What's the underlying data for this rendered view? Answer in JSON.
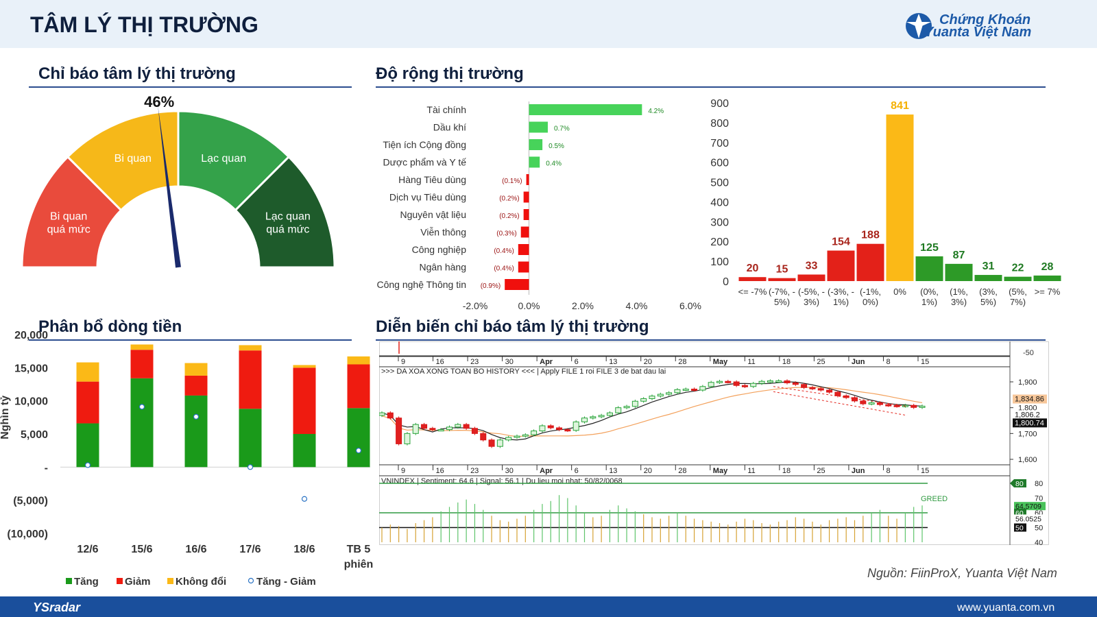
{
  "header": {
    "title": "TÂM LÝ THỊ TRƯỜNG",
    "logo_line1": "Chứng Khoán",
    "logo_line2": "Yuanta Việt Nam"
  },
  "colors": {
    "green": "#2d9a27",
    "red": "#e32119",
    "yellow": "#fbb917",
    "dark_green": "#1d5a2a",
    "title_blue": "#0f1f3d",
    "brand_blue": "#1a4f9c"
  },
  "gauge": {
    "section_title": "Chỉ báo tâm lý thị trường",
    "value_label": "46%",
    "value": 46,
    "segments": [
      {
        "label": [
          "Bi quan",
          "quá mức"
        ],
        "color": "#e94b3c"
      },
      {
        "label": [
          "Bi quan"
        ],
        "color": "#f6b819"
      },
      {
        "label": [
          "Lạc quan"
        ],
        "color": "#34a24a"
      },
      {
        "label": [
          "Lạc quan",
          "quá mức"
        ],
        "color": "#1e5b2b"
      }
    ]
  },
  "breadth": {
    "section_title": "Độ rộng thị trường",
    "sector_chart": {
      "type": "bar",
      "orientation": "horizontal",
      "categories": [
        "Tài chính",
        "Dầu khí",
        "Tiện ích Cộng đồng",
        "Dược phẩm và Y tế",
        "Hàng Tiêu dùng",
        "Dịch vụ Tiêu dùng",
        "Nguyên vật liệu",
        "Viễn thông",
        "Công nghiệp",
        "Ngân hàng",
        "Công nghệ Thông tin"
      ],
      "values": [
        4.2,
        0.7,
        0.5,
        0.4,
        -0.1,
        -0.2,
        -0.2,
        -0.3,
        -0.4,
        -0.4,
        -0.9
      ],
      "data_labels": [
        "4.2%",
        "0.7%",
        "0.5%",
        "0.4%",
        "(0.1%)",
        "(0.2%)",
        "(0.2%)",
        "(0.3%)",
        "(0.4%)",
        "(0.4%)",
        "(0.9%)"
      ],
      "xlim": [
        -2,
        6
      ],
      "xticks": [
        "-2.0%",
        "0.0%",
        "2.0%",
        "4.0%",
        "6.0%"
      ],
      "xtick_values": [
        -2,
        0,
        2,
        4,
        6
      ]
    },
    "distribution_chart": {
      "type": "bar",
      "categories": [
        [
          "<= -7%"
        ],
        [
          "(-7%, -",
          "5%)"
        ],
        [
          "(-5%, -",
          "3%)"
        ],
        [
          "(-3%, -",
          "1%)"
        ],
        [
          "(-1%,",
          "0%)"
        ],
        [
          "0%"
        ],
        [
          "(0%,",
          "1%)"
        ],
        [
          "(1%,",
          "3%)"
        ],
        [
          "(3%,",
          "5%)"
        ],
        [
          "(5%,",
          "7%)"
        ],
        [
          ">= 7%"
        ]
      ],
      "values": [
        20,
        15,
        33,
        154,
        188,
        841,
        125,
        87,
        31,
        22,
        28
      ],
      "colors": [
        "#e32119",
        "#e32119",
        "#e32119",
        "#e32119",
        "#e32119",
        "#fbb917",
        "#2d9a27",
        "#2d9a27",
        "#2d9a27",
        "#2d9a27",
        "#2d9a27"
      ],
      "ylim": [
        0,
        900
      ],
      "yticks": [
        0,
        100,
        200,
        300,
        400,
        500,
        600,
        700,
        800,
        900
      ]
    }
  },
  "money_flow": {
    "section_title": "Phân bổ dòng tiền",
    "chart": {
      "type": "bar",
      "stacked": true,
      "categories": [
        [
          "12/6"
        ],
        [
          "15/6"
        ],
        [
          "16/6"
        ],
        [
          "17/6"
        ],
        [
          "18/6"
        ],
        [
          "TB 5",
          "phiên"
        ]
      ],
      "series": [
        {
          "name": "Tăng",
          "color": "#1a9a1a",
          "values": [
            6600,
            13400,
            10800,
            8800,
            5000,
            8900
          ]
        },
        {
          "name": "Giảm",
          "color": "#ef1b10",
          "values": [
            6300,
            4300,
            3000,
            8800,
            10000,
            6600
          ]
        },
        {
          "name": "Không đổi",
          "color": "#fbb917",
          "values": [
            2900,
            800,
            1900,
            800,
            400,
            1200
          ]
        }
      ],
      "net_series": {
        "name": "Tăng - Giảm",
        "values": [
          300,
          9100,
          7600,
          0,
          -4800,
          2500
        ]
      },
      "ylabel": "Nghìn tỷ",
      "ylim": [
        -10000,
        20000
      ],
      "yticks": [
        {
          "v": 20000,
          "label": "20,000"
        },
        {
          "v": 15000,
          "label": "15,000"
        },
        {
          "v": 10000,
          "label": "10,000"
        },
        {
          "v": 5000,
          "label": "5,000"
        },
        {
          "v": 0,
          "label": "-"
        },
        {
          "v": -5000,
          "label": "(5,000)"
        },
        {
          "v": -10000,
          "label": "(10,000)"
        }
      ],
      "legend_position": "bottom"
    }
  },
  "sentiment_history": {
    "section_title": "Diễn biến chỉ báo tâm lý thị trường",
    "date_ticks": [
      "9",
      "16",
      "23",
      "30",
      "Apr",
      "6",
      "13",
      "20",
      "28",
      "May",
      "11",
      "18",
      "25",
      "Jun",
      "8",
      "15"
    ],
    "date_ticks_bold": [
      "Apr",
      "May",
      "Jun"
    ],
    "price_panel_label": ">>> DA XOA XONG TOAN BO HISTORY <<< | Apply FILE 1 roi FILE 3 de bat dau lai",
    "top_axis_value": "-50",
    "price_axis": [
      "1,900",
      "1,800",
      "1,700",
      "1,600"
    ],
    "price_axis_values": [
      1900,
      1800,
      1700,
      1600
    ],
    "price_tags": [
      {
        "label": "1,834.86",
        "value": 1834.86,
        "style": "orange"
      },
      {
        "label": "1,806.2",
        "value": 1806.2,
        "style": "plain"
      },
      {
        "label": "1,800.74",
        "value": 1800.74,
        "style": "dark"
      }
    ],
    "candles_close": [
      1780,
      1760,
      1660,
      1700,
      1735,
      1720,
      1715,
      1715,
      1725,
      1735,
      1720,
      1700,
      1675,
      1650,
      1675,
      1685,
      1690,
      1695,
      1710,
      1730,
      1722,
      1715,
      1712,
      1745,
      1760,
      1765,
      1770,
      1780,
      1800,
      1805,
      1825,
      1835,
      1845,
      1852,
      1858,
      1870,
      1872,
      1868,
      1882,
      1898,
      1902,
      1900,
      1886,
      1882,
      1894,
      1902,
      1904,
      1904,
      1896,
      1890,
      1878,
      1874,
      1868,
      1860,
      1846,
      1839,
      1826,
      1815,
      1819,
      1812,
      1809,
      1806,
      1809,
      1801,
      1806
    ],
    "sentiment_label": "VNINDEX | Sentiment: 64.6 | Signal: 56.1 | Du lieu moi nhat: 50/82/0068",
    "sentiment_axis": [
      "80",
      "70",
      "60",
      "50",
      "40"
    ],
    "sentiment_tags": [
      {
        "label": "80",
        "value": 80,
        "style": "dark-green"
      },
      {
        "label": "64.5709",
        "value": 64.57,
        "style": "green"
      },
      {
        "label": "60",
        "value": 60,
        "style": "dark-green"
      },
      {
        "label": "56.0525",
        "value": 56.05,
        "style": "plain"
      },
      {
        "label": "50",
        "value": 50,
        "style": "black"
      }
    ],
    "greed_label": "GREED",
    "sentiment_values": [
      50,
      52,
      51,
      49,
      53,
      55,
      57,
      61,
      64,
      67,
      69,
      66,
      62,
      58,
      55,
      54,
      56,
      58,
      62,
      66,
      68,
      72,
      70,
      65,
      60,
      57,
      58,
      62,
      65,
      63,
      61,
      59,
      57,
      56,
      58,
      60,
      58,
      56,
      55,
      54,
      53,
      52,
      54,
      56,
      55,
      53,
      52,
      54,
      55,
      57,
      56,
      54,
      52,
      55,
      56,
      57,
      55,
      58,
      60,
      62,
      58,
      56,
      60,
      64,
      65
    ]
  },
  "source_note": "Nguồn: FiinProX, Yuanta Việt Nam",
  "footer": {
    "brand": "YSradar",
    "url": "www.yuanta.com.vn"
  }
}
